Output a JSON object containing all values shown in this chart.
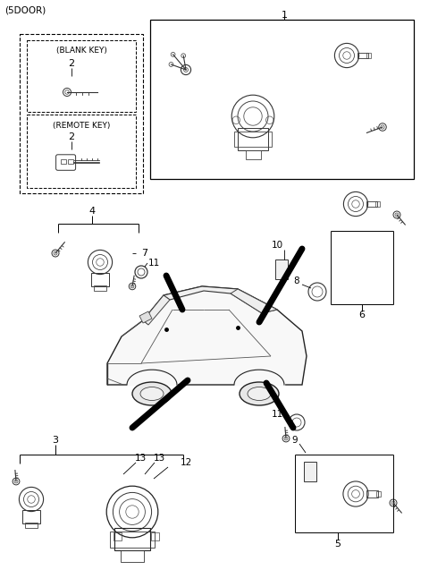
{
  "background_color": "#ffffff",
  "text_color": "#000000",
  "line_color": "#000000",
  "fig_width": 4.8,
  "fig_height": 6.56,
  "dpi": 100,
  "header": "(5DOOR)",
  "label1": "1",
  "label2a": "2",
  "label2b": "2",
  "label3": "3",
  "label4": "4",
  "label5": "5",
  "label6": "6",
  "label7": "7",
  "label8": "8",
  "label9": "9",
  "label10": "10",
  "label11a": "11",
  "label11b": "11",
  "label12": "12",
  "label13a": "13",
  "label13b": "13",
  "blank_key": "(BLANK KEY)",
  "remote_key": "(REMOTE KEY)"
}
